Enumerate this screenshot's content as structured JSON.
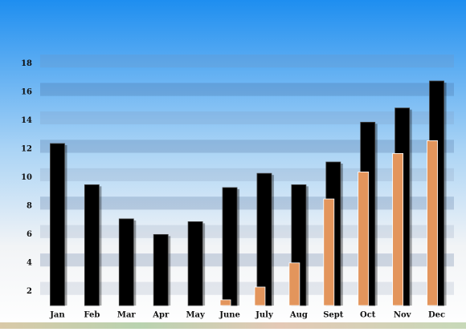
{
  "chart_data": {
    "type": "bar",
    "categories": [
      "Jan",
      "Feb",
      "Mar",
      "Apr",
      "May",
      "June",
      "July",
      "Aug",
      "Sept",
      "Oct",
      "Nov",
      "Dec"
    ],
    "series": [
      {
        "color": "#000000",
        "values": [
          12.4,
          9.5,
          7.1,
          6.0,
          6.9,
          9.3,
          10.3,
          9.5,
          11.1,
          13.9,
          14.9,
          16.8
        ]
      },
      {
        "color": "#e3955c",
        "values": [
          null,
          null,
          null,
          null,
          null,
          1.4,
          2.3,
          4.0,
          8.5,
          10.4,
          11.7,
          12.6
        ]
      }
    ],
    "ylim": [
      1,
      19
    ],
    "yticks": [
      2,
      4,
      6,
      8,
      10,
      12,
      14,
      16,
      18
    ]
  }
}
